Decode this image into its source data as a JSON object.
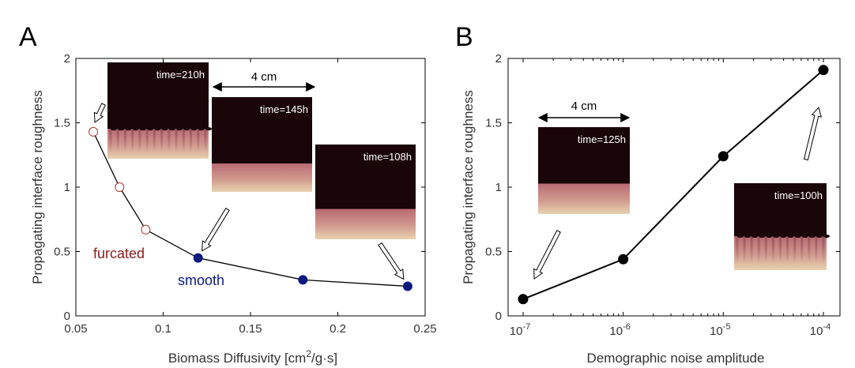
{
  "chart_data": [
    {
      "type": "scatter",
      "panel_label": "A",
      "xlabel": "Biomass Diffusivity [cm²/g·s]",
      "xlabel_base": "Biomass Diffusivity [cm",
      "xlabel_sup": "2",
      "xlabel_tail": "/g·s]",
      "ylabel": "Propagating interface roughness",
      "xlim": [
        0.05,
        0.25
      ],
      "ylim": [
        0,
        2
      ],
      "x_ticks": [
        0.05,
        0.1,
        0.15,
        0.2,
        0.25
      ],
      "x_tick_labels": [
        "0.05",
        "0.1",
        "0.15",
        "0.2",
        "0.25"
      ],
      "y_ticks": [
        0,
        0.5,
        1,
        1.5,
        2
      ],
      "y_tick_labels": [
        "0",
        "0.5",
        "1",
        "1.5",
        "2"
      ],
      "line": {
        "x": [
          0.06,
          0.075,
          0.09,
          0.12,
          0.18,
          0.24
        ],
        "y": [
          1.43,
          1.0,
          0.67,
          0.45,
          0.28,
          0.23
        ],
        "color": "#000000"
      },
      "series": [
        {
          "name": "furcated",
          "x": [
            0.06,
            0.075,
            0.09
          ],
          "y": [
            1.43,
            1.0,
            0.67
          ],
          "color": "#b03030",
          "marker": "open-circle"
        },
        {
          "name": "smooth",
          "x": [
            0.12,
            0.18,
            0.24
          ],
          "y": [
            0.45,
            0.28,
            0.23
          ],
          "color": "#0b1a80",
          "marker": "filled-circle"
        }
      ],
      "annotations": {
        "furcated": "furcated",
        "smooth": "smooth",
        "scale_bar": "4 cm"
      },
      "insets": [
        {
          "time": "time=210h",
          "front_fraction": 0.31,
          "rough": true
        },
        {
          "time": "time=145h",
          "front_fraction": 0.3,
          "rough": false
        },
        {
          "time": "time=108h",
          "front_fraction": 0.32,
          "rough": false
        }
      ]
    },
    {
      "type": "line",
      "panel_label": "B",
      "xlabel": "Demographic noise amplitude",
      "ylabel": "Propagating interface roughness",
      "xscale": "log",
      "xlim": [
        1e-07,
        0.0001
      ],
      "ylim": [
        0,
        2
      ],
      "x_ticks": [
        1e-07,
        1e-06,
        1e-05,
        0.0001
      ],
      "x_tick_labels": [
        {
          "base": "10",
          "exp": "-7"
        },
        {
          "base": "10",
          "exp": "-6"
        },
        {
          "base": "10",
          "exp": "-5"
        },
        {
          "base": "10",
          "exp": "-4"
        }
      ],
      "y_ticks": [
        0,
        0.5,
        1,
        1.5,
        2
      ],
      "y_tick_labels": [
        "0",
        "0.5",
        "1",
        "1.5",
        "2"
      ],
      "series": [
        {
          "x": [
            1e-07,
            1e-06,
            1e-05,
            0.0001
          ],
          "y": [
            0.13,
            0.44,
            1.24,
            1.91
          ],
          "color": "#000000",
          "marker": "filled-circle"
        }
      ],
      "annotations": {
        "scale_bar": "4 cm"
      },
      "insets": [
        {
          "time": "time=125h",
          "front_fraction": 0.35,
          "rough": false
        },
        {
          "time": "time=100h",
          "front_fraction": 0.39,
          "rough": true
        }
      ]
    }
  ]
}
